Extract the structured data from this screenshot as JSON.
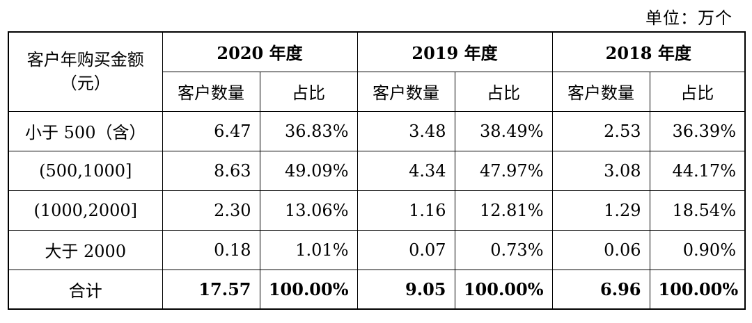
{
  "unit_note": "单位：万个",
  "table": {
    "first_col_header_line1": "客户年购买金额",
    "first_col_header_line2": "（元）",
    "year_headers": [
      "2020 年度",
      "2019 年度",
      "2018 年度"
    ],
    "sub_headers": {
      "count": "客户数量",
      "ratio": "占比"
    },
    "rows": [
      {
        "label": "小于 500（含）",
        "cells": [
          "6.47",
          "36.83%",
          "3.48",
          "38.49%",
          "2.53",
          "36.39%"
        ]
      },
      {
        "label": "(500,1000]",
        "cells": [
          "8.63",
          "49.09%",
          "4.34",
          "47.97%",
          "3.08",
          "44.17%"
        ]
      },
      {
        "label": "(1000,2000]",
        "cells": [
          "2.30",
          "13.06%",
          "1.16",
          "12.81%",
          "1.29",
          "18.54%"
        ]
      },
      {
        "label": "大于 2000",
        "cells": [
          "0.18",
          "1.01%",
          "0.07",
          "0.73%",
          "0.06",
          "0.90%"
        ]
      },
      {
        "label": "合计",
        "cells": [
          "17.57",
          "100.00%",
          "9.05",
          "100.00%",
          "6.96",
          "100.00%"
        ]
      }
    ]
  }
}
